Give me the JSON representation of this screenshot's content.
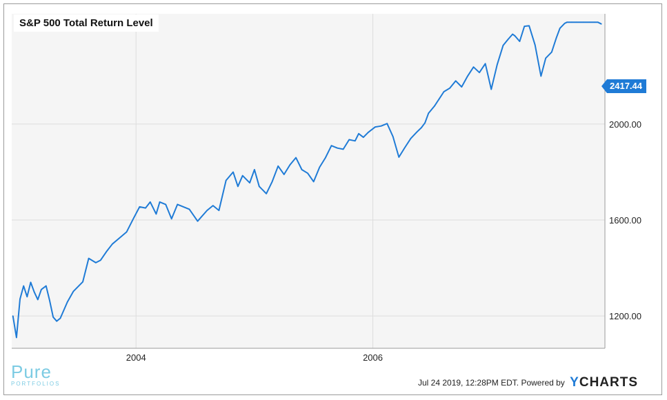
{
  "chart_data": {
    "type": "line",
    "title": "S&P 500 Total Return Level",
    "last_value_label": "2417.44",
    "line_color": "#1f7bd6",
    "grid": true,
    "y_axis_position": "right",
    "ylim": [
      1065,
      2460
    ],
    "y_ticks": [
      1200,
      1600,
      2000
    ],
    "y_tick_labels": [
      "1200.00",
      "1600.00",
      "2000.00"
    ],
    "xlim": [
      2002.95,
      2007.96
    ],
    "x_ticks": [
      2004,
      2006
    ],
    "x_tick_labels": [
      "2004",
      "2006"
    ],
    "series": [
      {
        "x": [
          2002.96,
          2002.99,
          2003.02,
          2003.05,
          2003.08,
          2003.11,
          2003.14,
          2003.17,
          2003.2,
          2003.24,
          2003.27,
          2003.3,
          2003.33,
          2003.36,
          2003.42,
          2003.47,
          2003.55,
          2003.6,
          2003.66,
          2003.7,
          2003.75,
          2003.8,
          2003.86,
          2003.92,
          2003.98,
          2004.03,
          2004.08,
          2004.12,
          2004.17,
          2004.2,
          2004.25,
          2004.3,
          2004.35,
          2004.4,
          2004.45,
          2004.52,
          2004.6,
          2004.65,
          2004.7,
          2004.76,
          2004.82,
          2004.86,
          2004.9,
          2004.96,
          2005.0,
          2005.04,
          2005.1,
          2005.15,
          2005.2,
          2005.25,
          2005.3,
          2005.35,
          2005.4,
          2005.45,
          2005.5,
          2005.55,
          2005.6,
          2005.65,
          2005.7,
          2005.75,
          2005.8,
          2005.85,
          2005.88,
          2005.92,
          2005.96,
          2006.02,
          2006.07,
          2006.12,
          2006.17,
          2006.22,
          2006.27,
          2006.32,
          2006.37,
          2006.41,
          2006.44,
          2006.47,
          2006.52,
          2006.56,
          2006.6,
          2006.65,
          2006.7,
          2006.75,
          2006.8,
          2006.85,
          2006.9,
          2006.95,
          2007.0,
          2007.05,
          2007.1,
          2007.14,
          2007.18,
          2007.2,
          2007.24,
          2007.28,
          2007.32,
          2007.37,
          2007.42,
          2007.46,
          2007.51,
          2007.55,
          2007.58,
          2007.62,
          2007.64,
          2007.68,
          2007.72,
          2007.78,
          2007.83,
          2007.87,
          2007.9,
          2007.93
        ],
        "y": [
          1200,
          1110,
          1270,
          1325,
          1280,
          1340,
          1300,
          1268,
          1310,
          1325,
          1265,
          1195,
          1178,
          1190,
          1258,
          1302,
          1342,
          1440,
          1422,
          1432,
          1468,
          1500,
          1525,
          1550,
          1608,
          1655,
          1650,
          1675,
          1625,
          1675,
          1665,
          1605,
          1665,
          1655,
          1645,
          1595,
          1640,
          1660,
          1640,
          1765,
          1800,
          1740,
          1785,
          1755,
          1810,
          1740,
          1710,
          1760,
          1825,
          1790,
          1830,
          1860,
          1810,
          1795,
          1760,
          1820,
          1860,
          1910,
          1900,
          1895,
          1935,
          1930,
          1960,
          1945,
          1965,
          1988,
          1992,
          2002,
          1948,
          1862,
          1902,
          1940,
          1966,
          1985,
          2005,
          2045,
          2075,
          2105,
          2135,
          2150,
          2180,
          2155,
          2200,
          2238,
          2215,
          2252,
          2145,
          2248,
          2328,
          2352,
          2375,
          2368,
          2345,
          2408,
          2410,
          2330,
          2200,
          2275,
          2300,
          2360,
          2400,
          2420,
          2425,
          2425,
          2425,
          2425,
          2425,
          2425,
          2425,
          2417.44
        ]
      }
    ]
  },
  "branding": {
    "logo_line1": "Pure",
    "logo_line2": "PORTFOLIOS"
  },
  "footer": {
    "timestamp": "Jul 24 2019, 12:28PM EDT.",
    "powered_by": "Powered by",
    "brand_y": "Y",
    "brand_rest": "CHARTS"
  }
}
